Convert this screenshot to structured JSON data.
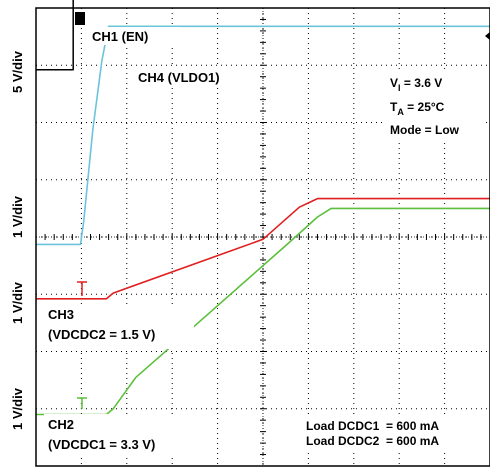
{
  "chart_data": {
    "type": "line",
    "x_divisions": 10,
    "y_divisions": 8,
    "grid": "dotted",
    "series": [
      {
        "name": "CH1 (EN)",
        "color": "#000000",
        "baseline_div": 6.92,
        "points": [
          [
            0,
            0
          ],
          [
            0.82,
            0
          ],
          [
            0.82,
            1.73
          ],
          [
            10,
            1.73
          ]
        ]
      },
      {
        "name": "CH4 (VLDO1)",
        "color": "#6cc4dc",
        "baseline_div": 3.87,
        "points": [
          [
            0,
            0
          ],
          [
            0.98,
            0
          ],
          [
            1.05,
            0.4
          ],
          [
            1.25,
            2.0
          ],
          [
            1.45,
            3.2
          ],
          [
            1.6,
            3.81
          ],
          [
            2.0,
            3.81
          ],
          [
            10,
            3.81
          ]
        ]
      },
      {
        "name": "CH3 (VDCDC2 = 1.5 V)",
        "color": "#e02020",
        "baseline_div": 2.92,
        "points": [
          [
            0,
            0
          ],
          [
            1.55,
            0
          ],
          [
            1.7,
            0.1
          ],
          [
            5.0,
            1.04
          ],
          [
            5.8,
            1.6
          ],
          [
            6.2,
            1.75
          ],
          [
            10,
            1.75
          ]
        ]
      },
      {
        "name": "CH2 (VDCDC1 = 3.3 V)",
        "color": "#5cbf3c",
        "baseline_div": 0.9,
        "points": [
          [
            0,
            0
          ],
          [
            1.55,
            0
          ],
          [
            1.7,
            0.1
          ],
          [
            2.2,
            0.65
          ],
          [
            3.5,
            1.55
          ],
          [
            5.5,
            2.95
          ],
          [
            6.2,
            3.45
          ],
          [
            6.5,
            3.6
          ],
          [
            10,
            3.6
          ]
        ]
      }
    ]
  },
  "labels": {
    "ch1": "CH1 (EN)",
    "ch4": "CH4 (VLDO1)",
    "ch3_line1": "CH3",
    "ch3_line2": "(VDCDC2 = 1.5 V)",
    "ch2_line1": "CH2",
    "ch2_line2": "(VDCDC1 = 3.3 V)",
    "vi": "V",
    "vi_sub": "I",
    "vi_val": " = 3.6 V",
    "ta": "T",
    "ta_sub": "A",
    "ta_val": " = 25°C",
    "mode": "Mode = Low",
    "load1": "Load DCDC1  = 600 mA",
    "load2": "Load DCDC2  = 600 mA"
  },
  "y_scale_labels": [
    "5 V/div",
    "1 V/div",
    "1 V/div",
    "1 V/div"
  ],
  "markers": {
    "ch1": "1"
  },
  "colors": {
    "ch1": "#000000",
    "ch4": "#6cc4dc",
    "ch3": "#e02020",
    "ch2": "#5cbf3c",
    "grid": "#000000"
  }
}
